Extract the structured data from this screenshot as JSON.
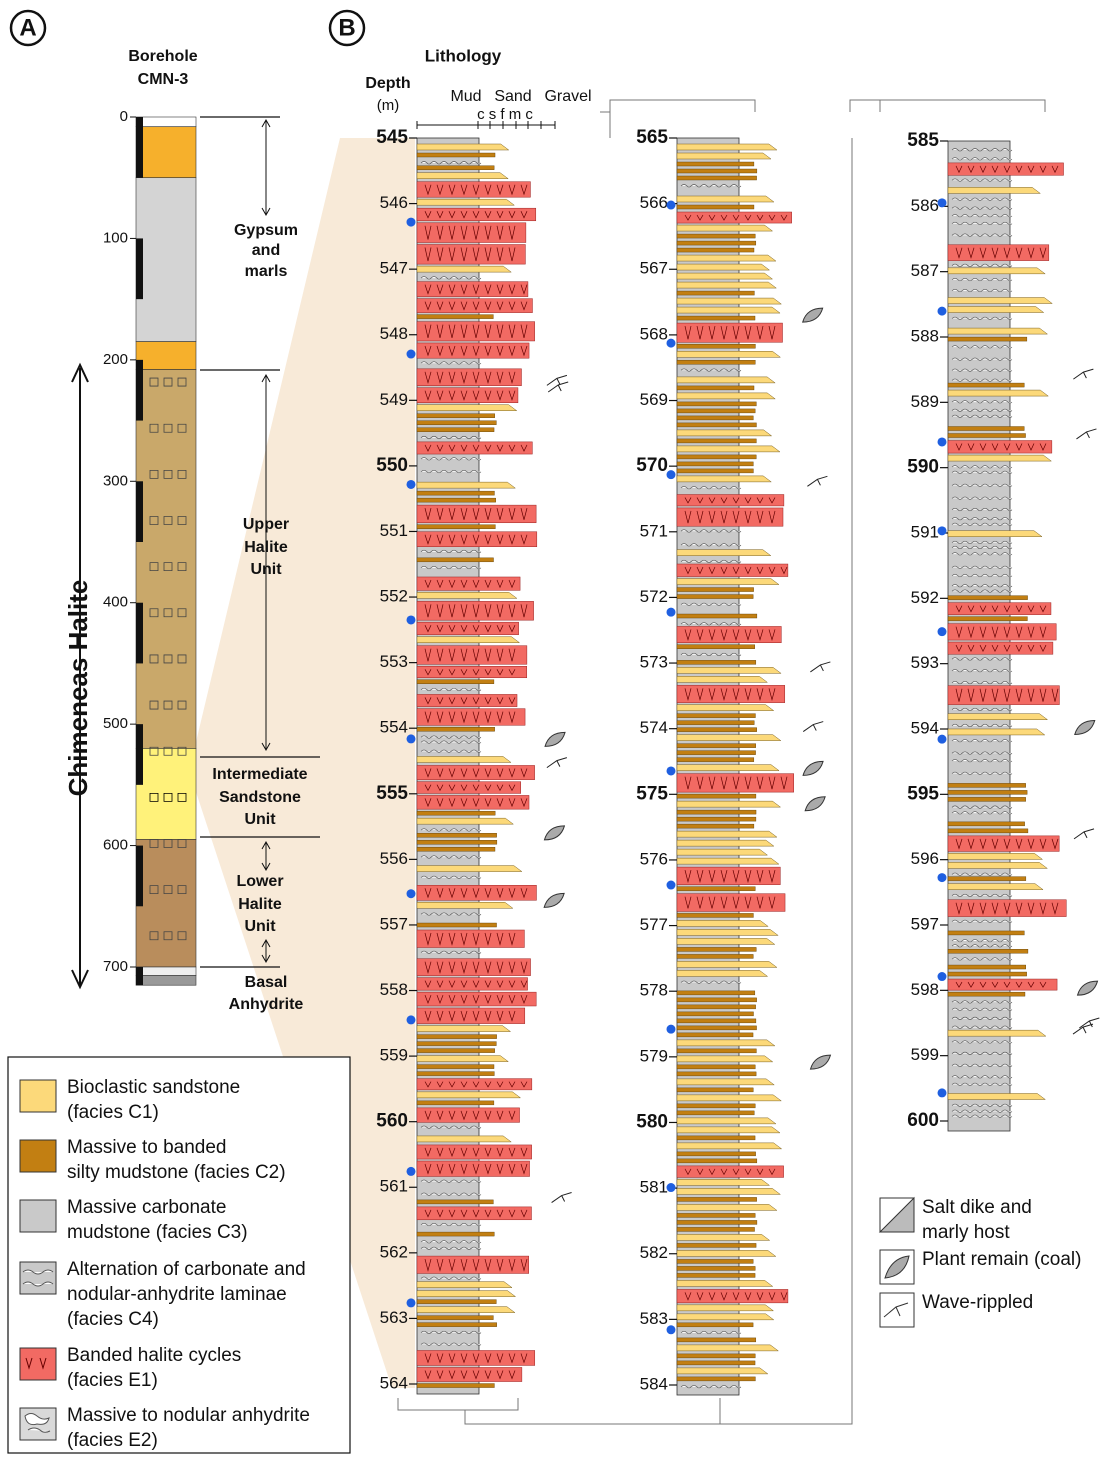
{
  "panel_a": {
    "label": "A",
    "title": [
      "Borehole",
      "CMN-3"
    ],
    "depth_ticks": [
      0,
      100,
      200,
      300,
      400,
      500,
      600,
      700
    ],
    "units": [
      {
        "lines": [
          "Gypsum",
          "and",
          "marls"
        ]
      },
      {
        "lines": [
          "Upper",
          "Halite",
          "Unit"
        ]
      },
      {
        "lines": [
          "Intermediate",
          "Sandstone",
          "Unit"
        ]
      },
      {
        "lines": [
          "Lower",
          "Halite",
          "Unit"
        ]
      },
      {
        "lines": [
          "Basal",
          "Anhydrite"
        ]
      }
    ],
    "side_label": "Chimeneas Halite"
  },
  "panel_b": {
    "label": "B",
    "lithology": "Lithology",
    "depth_label": "Depth",
    "depth_unit": "(m)",
    "grain_size": {
      "mud": "Mud",
      "sand": "Sand",
      "gravel": "Gravel",
      "classes": "c s f m c"
    },
    "columns": [
      {
        "depths": [
          545,
          546,
          547,
          548,
          549,
          550,
          551,
          552,
          553,
          554,
          555,
          556,
          557,
          558,
          559,
          560,
          561,
          562,
          563,
          564
        ]
      },
      {
        "depths": [
          565,
          566,
          567,
          568,
          569,
          570,
          571,
          572,
          573,
          574,
          575,
          576,
          577,
          578,
          579,
          580,
          581,
          582,
          583,
          584
        ]
      },
      {
        "depths": [
          585,
          586,
          587,
          588,
          589,
          590,
          591,
          592,
          593,
          594,
          595,
          596,
          597,
          598,
          599,
          600
        ]
      }
    ]
  },
  "legend": {
    "items": [
      {
        "lines": [
          "Bioclastic sandstone",
          "(facies C1)"
        ]
      },
      {
        "lines": [
          "Massive to banded",
          "silty mudstone (facies C2)"
        ]
      },
      {
        "lines": [
          "Massive carbonate",
          "mudstone (facies C3)"
        ]
      },
      {
        "lines": [
          "Alternation of carbonate and",
          "nodular-anhydrite laminae",
          "(facies C4)"
        ]
      },
      {
        "lines": [
          "Banded halite cycles",
          "(facies E1)"
        ]
      },
      {
        "lines": [
          "Massive to nodular anhydrite",
          "(facies E2)"
        ]
      }
    ]
  },
  "symbols": {
    "items": [
      {
        "lines": [
          "Salt dike and",
          "marly host"
        ]
      },
      {
        "lines": [
          "Plant remain (coal)"
        ]
      },
      {
        "lines": [
          "Wave-rippled"
        ]
      }
    ]
  }
}
